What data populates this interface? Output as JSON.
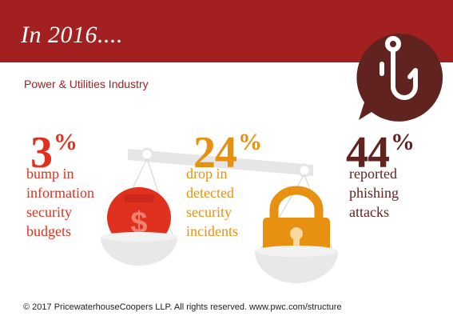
{
  "banner": {
    "title": "In 2016....",
    "color": "#a32020"
  },
  "subtitle": "Power & Utilities Industry",
  "stats": [
    {
      "value": "3",
      "unit": "%",
      "description": [
        "bump in",
        "information",
        "security",
        "budgets"
      ],
      "color": "#e0301e",
      "icon": "dollar-weight-icon"
    },
    {
      "value": "24",
      "unit": "%",
      "description": [
        "drop in",
        "detected",
        "security",
        "incidents"
      ],
      "color": "#e8900f",
      "icon": "padlock-weight-icon"
    },
    {
      "value": "44",
      "unit": "%",
      "description": [
        "reported",
        "phishing",
        "attacks"
      ],
      "color": "#602320",
      "icon": "fish-hook-speech-bubble-icon"
    }
  ],
  "footer": "© 2017 PricewaterhouseCoopers LLP.  All rights reserved. www.pwc.com/structure",
  "colors": {
    "scale": "#e6e6e6",
    "bubble": "#602320"
  }
}
